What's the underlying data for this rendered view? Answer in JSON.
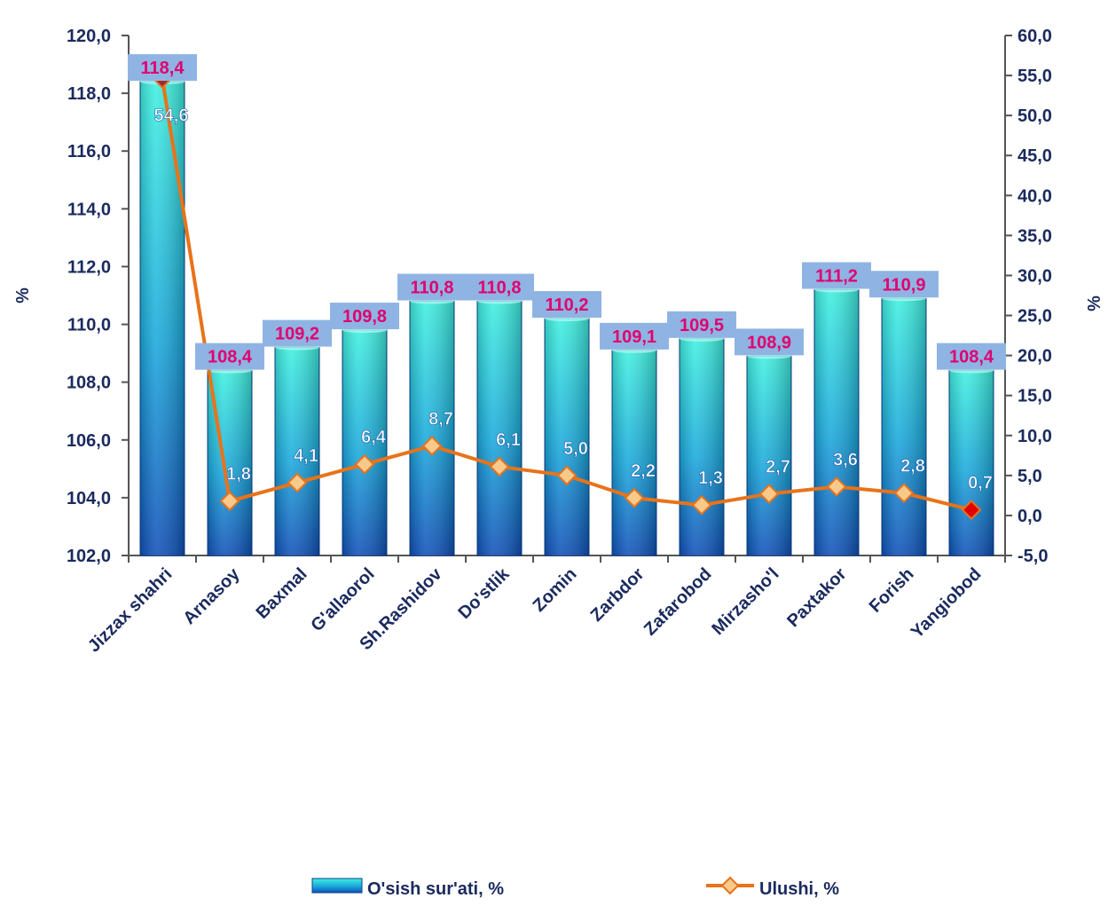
{
  "chart_data": {
    "type": "bar+line",
    "categories": [
      "Jizzax shahri",
      "Arnasoy",
      "Baxmal",
      "G'allaorol",
      "Sh.Rashidov",
      "Do'stlik",
      "Zomin",
      "Zarbdor",
      "Zafarobod",
      "Mirzasho'l",
      "Paxtakor",
      "Forish",
      "Yangiobod"
    ],
    "series": [
      {
        "name": "O'sish sur'ati, %",
        "type": "bar",
        "axis": "left",
        "values": [
          118.4,
          108.4,
          109.2,
          109.8,
          110.8,
          110.8,
          110.2,
          109.1,
          109.5,
          108.9,
          111.2,
          110.9,
          108.4
        ],
        "labels": [
          "118,4",
          "108,4",
          "109,2",
          "109,8",
          "110,8",
          "110,8",
          "110,2",
          "109,1",
          "109,5",
          "108,9",
          "111,2",
          "110,9",
          "108,4"
        ]
      },
      {
        "name": "Ulushi, %",
        "type": "line",
        "axis": "right",
        "values": [
          54.6,
          1.8,
          4.1,
          6.4,
          8.7,
          6.1,
          5.0,
          2.2,
          1.3,
          2.7,
          3.6,
          2.8,
          0.7
        ],
        "labels": [
          "54,6",
          "1,8",
          "4,1",
          "6,4",
          "8,7",
          "6,1",
          "5,0",
          "2,2",
          "1,3",
          "2,7",
          "3,6",
          "2,8",
          "0,7"
        ]
      }
    ],
    "y_left": {
      "label": "%",
      "ylim": [
        102.0,
        120.0
      ],
      "ticks": [
        102.0,
        104.0,
        106.0,
        108.0,
        110.0,
        112.0,
        114.0,
        116.0,
        118.0,
        120.0
      ],
      "tick_labels": [
        "102,0",
        "104,0",
        "106,0",
        "108,0",
        "110,0",
        "112,0",
        "114,0",
        "116,0",
        "118,0",
        "120,0"
      ]
    },
    "y_right": {
      "label": "%",
      "ylim": [
        -5.0,
        60.0
      ],
      "ticks": [
        -5.0,
        0.0,
        5.0,
        10.0,
        15.0,
        20.0,
        25.0,
        30.0,
        35.0,
        40.0,
        45.0,
        50.0,
        55.0,
        60.0
      ],
      "tick_labels": [
        "-5,0",
        "0,0",
        "5,0",
        "10,0",
        "15,0",
        "20,0",
        "25,0",
        "30,0",
        "35,0",
        "40,0",
        "45,0",
        "50,0",
        "55,0",
        "60,0"
      ]
    },
    "grid": false,
    "legend_position": "bottom",
    "colors": {
      "bar_top": "#3ff0e0",
      "bar_bottom": "#1050b8",
      "line": "#e8731a",
      "marker_fill": "#f7c98a",
      "marker_highlight_first": "#a0282a",
      "marker_highlight_last": "#e00000",
      "bar_label_bg": "#8fb4e3",
      "bar_label_text": "#e0006e",
      "axis_text": "#1a2a5e",
      "axis_line": "#555555"
    }
  }
}
